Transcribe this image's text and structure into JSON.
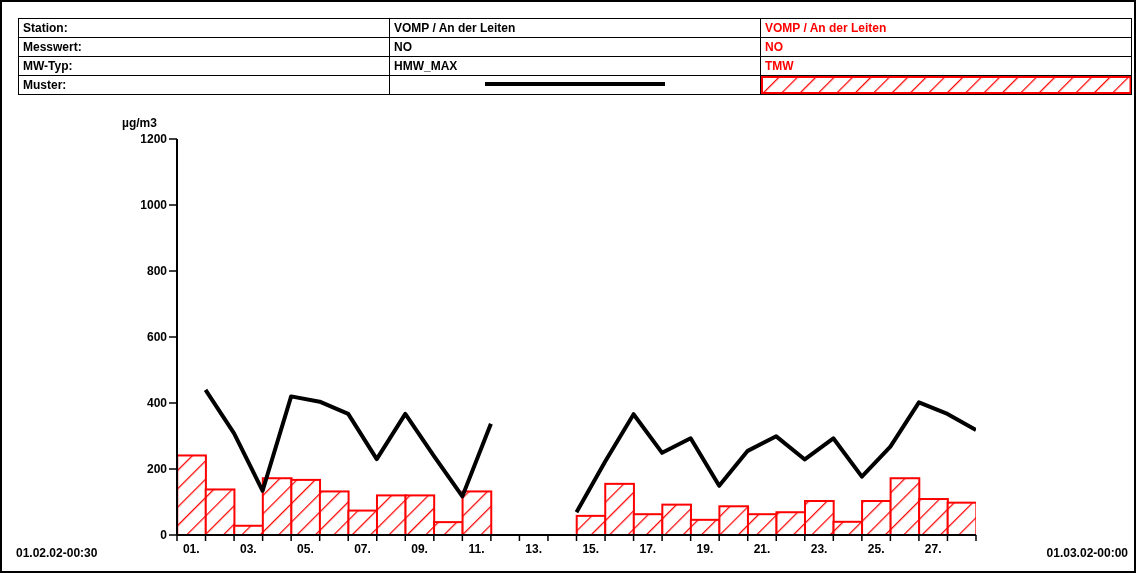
{
  "chart_data": {
    "type": "bar",
    "ylabel": "µg/m3",
    "annotations": [
      "Station:",
      "Messwert:",
      "MW-Typ:",
      "Muster:",
      "VOMP / An der Leiten",
      "NO",
      "01.02.02-00:30",
      "01.03.02-00:00"
    ],
    "xlim": [
      0,
      28
    ],
    "xticks": [
      {
        "value": 0,
        "label": null
      },
      {
        "value": 0.5,
        "label": "01."
      },
      {
        "value": 1,
        "label": null
      },
      {
        "value": 2,
        "label": null
      },
      {
        "value": 2.5,
        "label": "03."
      },
      {
        "value": 3,
        "label": null
      },
      {
        "value": 4,
        "label": null
      },
      {
        "value": 4.5,
        "label": "05."
      },
      {
        "value": 5,
        "label": null
      },
      {
        "value": 6,
        "label": null
      },
      {
        "value": 6.5,
        "label": "07."
      },
      {
        "value": 7,
        "label": null
      },
      {
        "value": 8,
        "label": null
      },
      {
        "value": 8.5,
        "label": "09."
      },
      {
        "value": 9,
        "label": null
      },
      {
        "value": 10,
        "label": null
      },
      {
        "value": 10.5,
        "label": "11."
      },
      {
        "value": 11,
        "label": null
      },
      {
        "value": 12,
        "label": null
      },
      {
        "value": 12.5,
        "label": "13."
      },
      {
        "value": 13,
        "label": null
      },
      {
        "value": 14,
        "label": null
      },
      {
        "value": 14.5,
        "label": "15."
      },
      {
        "value": 15,
        "label": null
      },
      {
        "value": 16,
        "label": null
      },
      {
        "value": 16.5,
        "label": "17."
      },
      {
        "value": 17,
        "label": null
      },
      {
        "value": 18,
        "label": null
      },
      {
        "value": 18.5,
        "label": "19."
      },
      {
        "value": 19,
        "label": null
      },
      {
        "value": 20,
        "label": null
      },
      {
        "value": 20.5,
        "label": "21."
      },
      {
        "value": 21,
        "label": null
      },
      {
        "value": 22,
        "label": null
      },
      {
        "value": 22.5,
        "label": "23."
      },
      {
        "value": 23,
        "label": null
      },
      {
        "value": 24,
        "label": null
      },
      {
        "value": 24.5,
        "label": "25."
      },
      {
        "value": 25,
        "label": null
      },
      {
        "value": 26,
        "label": null
      },
      {
        "value": 26.5,
        "label": "27."
      },
      {
        "value": 27,
        "label": null
      },
      {
        "value": 28,
        "label": null
      }
    ],
    "ylim": [
      0,
      1200
    ],
    "yticks": [
      0,
      200,
      400,
      600,
      800,
      1000,
      1200
    ],
    "grid": false,
    "legend": "top",
    "series": [
      {
        "name": "HMW_MAX",
        "type": "line",
        "color": "#000000",
        "x": [
          1,
          2,
          3,
          4,
          5,
          6,
          7,
          8,
          9,
          10,
          11,
          12,
          13,
          14,
          15,
          16,
          17,
          18,
          19,
          20,
          21,
          22,
          23,
          24,
          25,
          26,
          27,
          28
        ],
        "values": [
          440,
          308,
          134,
          420,
          404,
          367,
          230,
          367,
          240,
          117,
          337,
          null,
          null,
          69,
          222,
          366,
          249,
          293,
          149,
          255,
          299,
          229,
          293,
          177,
          268,
          402,
          367,
          318
        ]
      },
      {
        "name": "TMW",
        "color": "#ff0000",
        "x": [
          0.5,
          1.5,
          2.5,
          3.5,
          4.5,
          5.5,
          6.5,
          7.5,
          8.5,
          9.5,
          10.5,
          11.5,
          12.5,
          13.5,
          14.5,
          15.5,
          16.5,
          17.5,
          18.5,
          19.5,
          20.5,
          21.5,
          22.5,
          23.5,
          24.5,
          25.5,
          26.5,
          27.5
        ],
        "values": [
          241,
          138,
          28,
          172,
          167,
          132,
          74,
          120,
          120,
          39,
          132,
          null,
          null,
          null,
          58,
          155,
          63,
          92,
          46,
          87,
          63,
          69,
          103,
          40,
          103,
          172,
          109,
          98
        ]
      }
    ]
  }
}
